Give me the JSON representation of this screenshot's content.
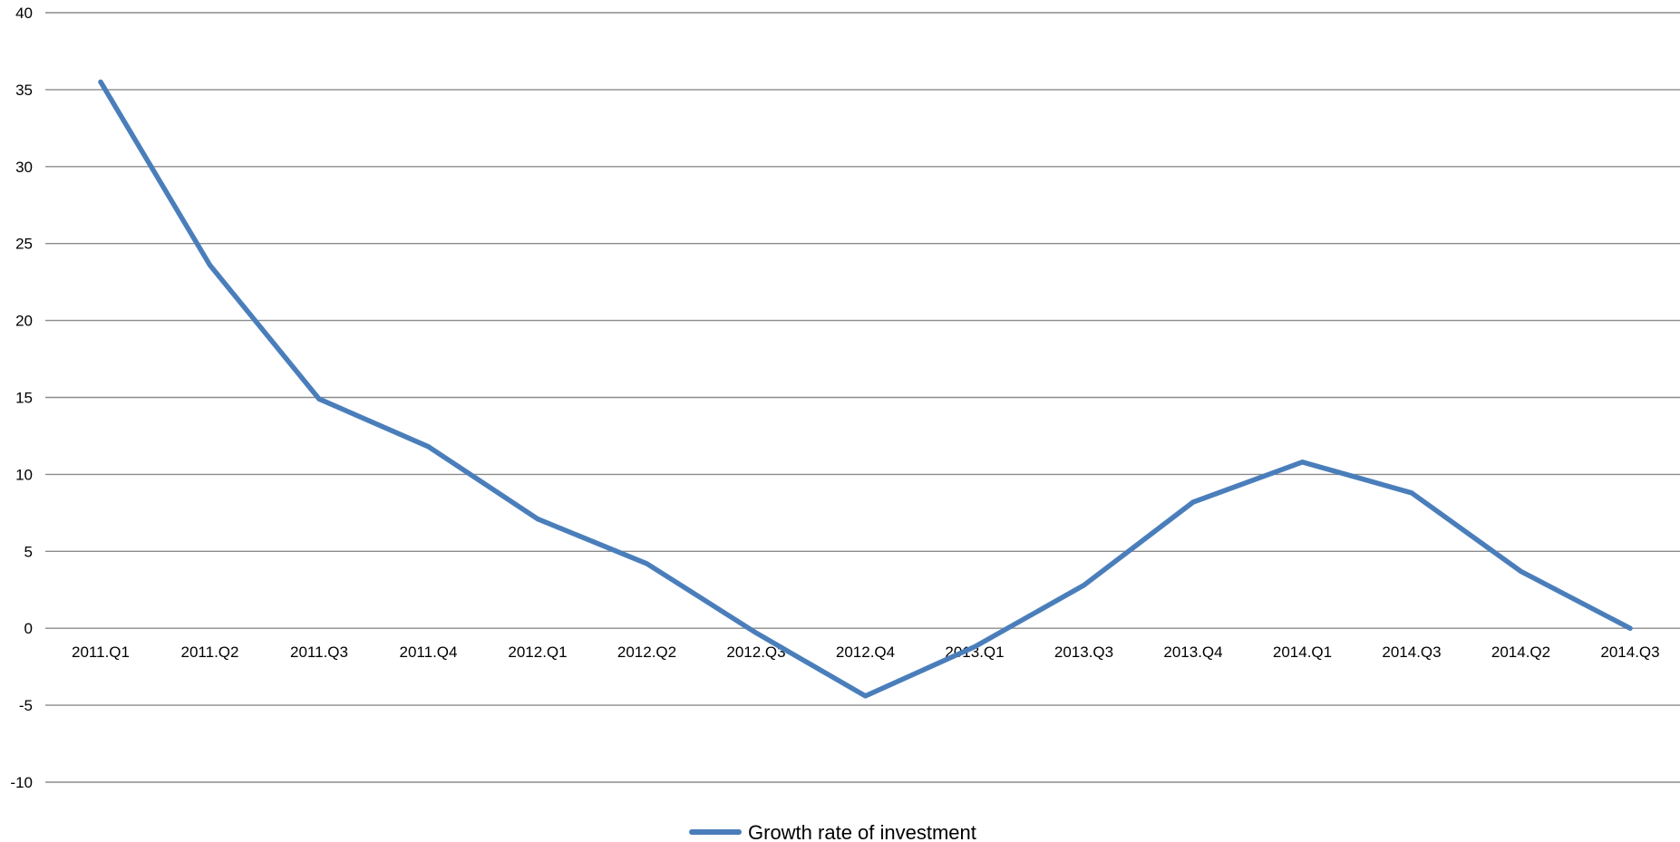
{
  "chart_data": {
    "type": "line",
    "title": "",
    "xlabel": "",
    "ylabel": "",
    "categories": [
      "2011.Q1",
      "2011.Q2",
      "2011.Q3",
      "2011.Q4",
      "2012.Q1",
      "2012.Q2",
      "2012.Q3",
      "2012.Q4",
      "2013.Q1",
      "2013.Q3",
      "2013.Q4",
      "2014.Q1",
      "2014.Q3",
      "2014.Q2",
      "2014.Q3"
    ],
    "series": [
      {
        "name": "Growth rate of investment",
        "color": "#4a7ebb",
        "values": [
          35.5,
          23.6,
          14.9,
          11.8,
          7.1,
          4.2,
          -0.3,
          -4.4,
          -1.2,
          2.8,
          8.2,
          10.8,
          8.8,
          3.7,
          0.0
        ]
      }
    ],
    "ylim": [
      -10,
      40
    ],
    "yticks": [
      -10,
      -5,
      0,
      5,
      10,
      15,
      20,
      25,
      30,
      35,
      40
    ],
    "grid": true,
    "legend_position": "bottom-center"
  }
}
